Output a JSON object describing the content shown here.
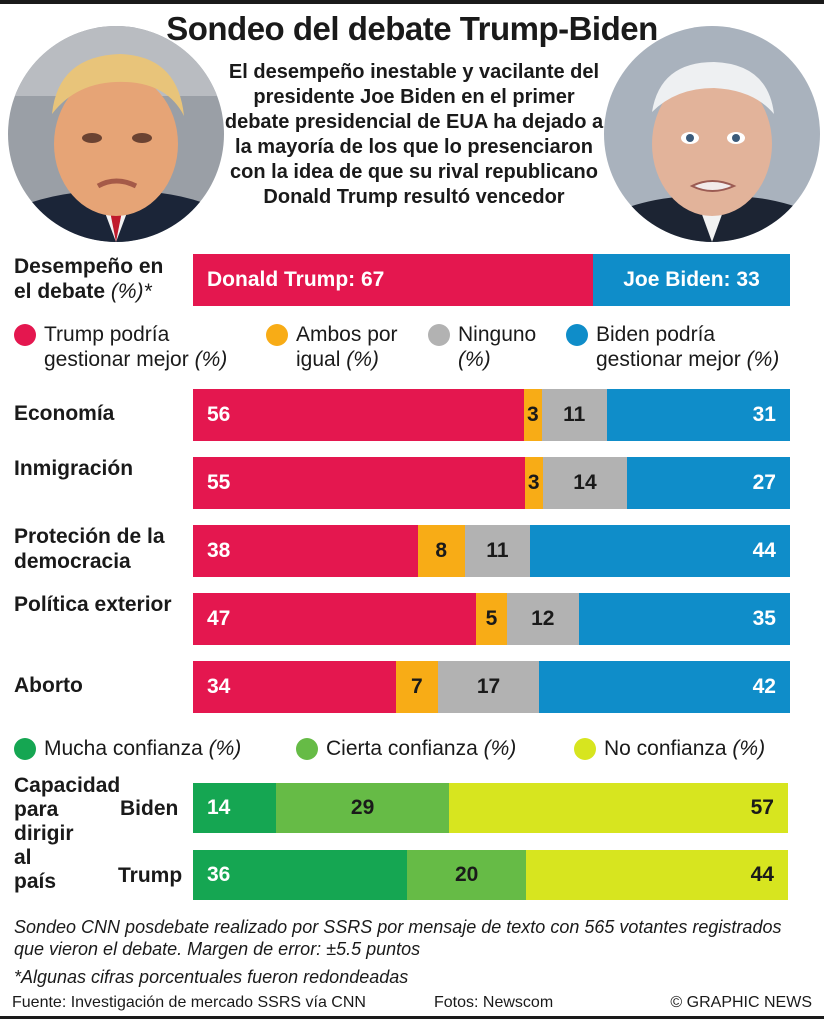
{
  "header": {
    "title": "Sondeo del debate Trump-Biden",
    "subtitle": "El desempeño inestable y vacilante del presidente Joe Biden en el primer debate presidencial de EUA ha dejado a la mayoría de los que lo presenciaron con la idea de que su rival republicano Donald Trump resultó vencedor"
  },
  "colors": {
    "trump": "#e4174f",
    "both": "#f8ac16",
    "none": "#b2b2b2",
    "biden": "#0f8dc9",
    "much_confidence": "#15a652",
    "some_confidence": "#66bb46",
    "no_confidence": "#d7e51f"
  },
  "performance": {
    "label_line1": "Desempeño en",
    "label_line2": "el debate",
    "label_unit": "(%)*",
    "trump_label": "Donald Trump: 67",
    "biden_label": "Joe Biden: 33"
  },
  "legend_issues": [
    {
      "line1": "Trump podría",
      "line2": "gestionar mejor",
      "unit": "(%)",
      "color_key": "trump"
    },
    {
      "line1": "Ambos por",
      "line2": "igual",
      "unit": "(%)",
      "color_key": "both"
    },
    {
      "line1": "Ninguno",
      "line2": "",
      "unit": "(%)",
      "color_key": "none"
    },
    {
      "line1": "Biden podría",
      "line2": "gestionar mejor",
      "unit": "(%)",
      "color_key": "biden"
    }
  ],
  "legend_confidence": [
    {
      "label": "Mucha confianza",
      "unit": "(%)",
      "color_key": "much_confidence"
    },
    {
      "label": "Cierta confianza",
      "unit": "(%)",
      "color_key": "some_confidence"
    },
    {
      "label": "No confianza",
      "unit": "(%)",
      "color_key": "no_confidence"
    }
  ],
  "confidence_block": {
    "label_lines": [
      "Capacidad",
      "para",
      "dirigir",
      "al",
      "país"
    ]
  },
  "notes": {
    "survey": "Sondeo CNN posdebate realizado por SSRS por mensaje de texto con 565 votantes registrados que vieron el debate. Margen de error: ±5.5 puntos",
    "rounding": "*Algunas cifras porcentuales fueron redondeadas"
  },
  "footer": {
    "source": "Fuente: Investigación de mercado SSRS vía CNN",
    "photos": "Fotos: Newscom",
    "credit": "© GRAPHIC NEWS"
  },
  "chart_data": [
    {
      "type": "bar",
      "orientation": "horizontal-stacked",
      "title": "Desempeño en el debate (%)*",
      "categories": [
        "Desempeño en el debate"
      ],
      "series": [
        {
          "name": "Donald Trump",
          "values": [
            67
          ]
        },
        {
          "name": "Joe Biden",
          "values": [
            33
          ]
        }
      ]
    },
    {
      "type": "bar",
      "orientation": "horizontal-stacked",
      "categories": [
        "Economía",
        "Inmigración",
        "Proteción de la democracia",
        "Política exterior",
        "Aborto"
      ],
      "series": [
        {
          "name": "Trump podría gestionar mejor",
          "values": [
            56,
            55,
            38,
            47,
            34
          ]
        },
        {
          "name": "Ambos por igual",
          "values": [
            3,
            3,
            8,
            5,
            7
          ]
        },
        {
          "name": "Ninguno",
          "values": [
            11,
            14,
            11,
            12,
            17
          ]
        },
        {
          "name": "Biden podría gestionar mejor",
          "values": [
            31,
            27,
            44,
            35,
            42
          ]
        }
      ]
    },
    {
      "type": "bar",
      "orientation": "horizontal-stacked",
      "title": "Capacidad para dirigir al país",
      "categories": [
        "Biden",
        "Trump"
      ],
      "series": [
        {
          "name": "Mucha confianza",
          "values": [
            14,
            36
          ]
        },
        {
          "name": "Cierta confianza",
          "values": [
            29,
            20
          ]
        },
        {
          "name": "No confianza",
          "values": [
            57,
            44
          ]
        }
      ]
    }
  ]
}
